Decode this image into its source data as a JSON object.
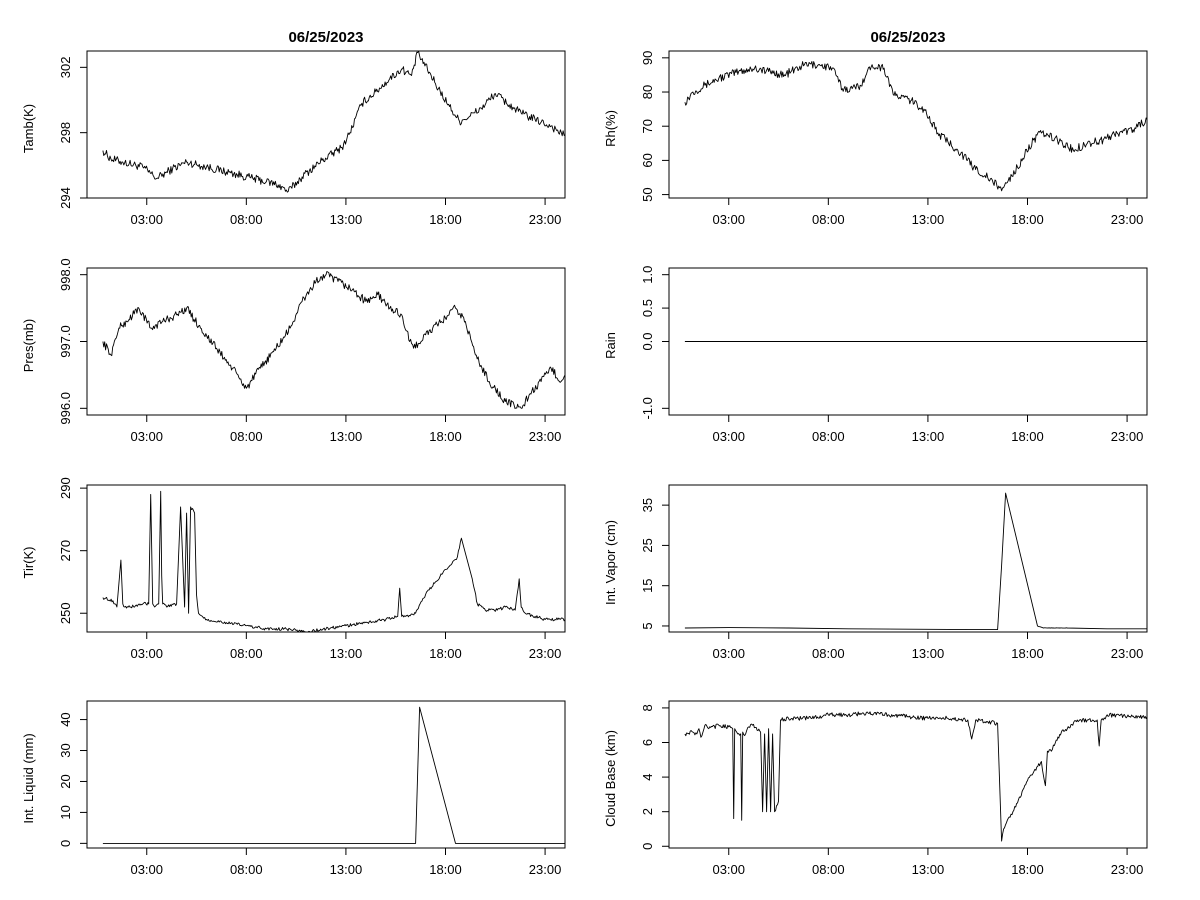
{
  "chart_data": [
    {
      "type": "line",
      "title": "06/25/2023",
      "ylabel": "Tamb(K)",
      "xlim": [
        0,
        24
      ],
      "ylim": [
        294,
        303
      ],
      "xticks": [
        3,
        8,
        13,
        18,
        23
      ],
      "xtick_labels": [
        "03:00",
        "08:00",
        "13:00",
        "18:00",
        "23:00"
      ],
      "yticks": [
        294,
        298,
        302
      ],
      "ytick_labels": [
        "294",
        "298",
        "302"
      ],
      "noise": 0.25,
      "series": [
        {
          "name": "Tamb",
          "x": [
            0.8,
            1.2,
            1.8,
            2.8,
            3.5,
            4.3,
            5,
            6,
            7,
            8,
            9,
            9.6,
            10.1,
            10.8,
            11.8,
            12.8,
            13.2,
            13.8,
            14.5,
            15.2,
            15.8,
            16.3,
            16.6,
            16.7,
            17.5,
            18.2,
            18.7,
            19.2,
            19.8,
            20.5,
            21.2,
            21.8,
            22.5,
            23.3,
            24
          ],
          "y": [
            296.9,
            296.4,
            296.2,
            295.9,
            295.2,
            295.8,
            296.2,
            295.9,
            295.6,
            295.3,
            295.0,
            294.8,
            294.4,
            295.3,
            296.3,
            297.1,
            298.0,
            299.8,
            300.5,
            301.3,
            301.9,
            301.5,
            302.9,
            302.7,
            301.0,
            299.6,
            298.7,
            299.0,
            299.5,
            300.4,
            299.7,
            299.2,
            298.8,
            298.4,
            297.8
          ]
        }
      ]
    },
    {
      "type": "line",
      "title": "06/25/2023",
      "ylabel": "Rh(%)",
      "xlim": [
        0,
        24
      ],
      "ylim": [
        49,
        92
      ],
      "xticks": [
        3,
        8,
        13,
        18,
        23
      ],
      "xtick_labels": [
        "03:00",
        "08:00",
        "13:00",
        "18:00",
        "23:00"
      ],
      "yticks": [
        50,
        60,
        70,
        80,
        90
      ],
      "ytick_labels": [
        "50",
        "60",
        "70",
        "80",
        "90"
      ],
      "noise": 1.2,
      "series": [
        {
          "name": "Rh",
          "x": [
            0.8,
            1.2,
            1.8,
            2.5,
            3.5,
            4.3,
            5,
            5.8,
            6.8,
            7.5,
            8.2,
            8.7,
            9.2,
            9.6,
            10.2,
            10.8,
            11.3,
            12,
            12.8,
            13.5,
            14.5,
            15.3,
            16,
            16.6,
            16.8,
            17.5,
            18.3,
            18.7,
            19.5,
            20.3,
            21,
            21.8,
            22.5,
            23.3,
            24
          ],
          "y": [
            77,
            80,
            82,
            84,
            86,
            87,
            86,
            85,
            88,
            88,
            87,
            81,
            81,
            82,
            88,
            87,
            79,
            78,
            75,
            68,
            63,
            58,
            55,
            52,
            52,
            58,
            66,
            68,
            66,
            63,
            65,
            66,
            68,
            69,
            72
          ]
        }
      ]
    },
    {
      "type": "line",
      "title": "",
      "ylabel": "Pres(mb)",
      "xlim": [
        0,
        24
      ],
      "ylim": [
        995.9,
        998.1
      ],
      "xticks": [
        3,
        8,
        13,
        18,
        23
      ],
      "xtick_labels": [
        "03:00",
        "08:00",
        "13:00",
        "18:00",
        "23:00"
      ],
      "yticks": [
        996.0,
        997.0,
        998.0
      ],
      "ytick_labels": [
        "996.0",
        "997.0",
        "998.0"
      ],
      "noise": 0.06,
      "series": [
        {
          "name": "Pres",
          "x": [
            0.8,
            1.2,
            1.6,
            2,
            2.6,
            3.2,
            3.8,
            4.5,
            5,
            5.7,
            6.5,
            7.3,
            8,
            8.7,
            9.5,
            10.2,
            10.8,
            11.5,
            12,
            12.6,
            13.2,
            14,
            14.6,
            15.2,
            15.8,
            16.2,
            16.4,
            17,
            17.8,
            18.5,
            19,
            19.5,
            20.2,
            21,
            21.8,
            22.2,
            22.8,
            23.3,
            23.8,
            24
          ],
          "y": [
            997.0,
            996.8,
            997.2,
            997.3,
            997.5,
            997.2,
            997.3,
            997.4,
            997.5,
            997.2,
            996.9,
            996.6,
            996.3,
            996.6,
            996.9,
            997.2,
            997.6,
            997.9,
            998.0,
            997.9,
            997.8,
            997.6,
            997.7,
            997.5,
            997.4,
            997.0,
            996.9,
            997.1,
            997.3,
            997.5,
            997.3,
            996.8,
            996.4,
            996.1,
            996.0,
            996.2,
            996.4,
            996.6,
            996.4,
            996.5
          ]
        }
      ]
    },
    {
      "type": "line",
      "title": "",
      "ylabel": "Rain",
      "xlim": [
        0,
        24
      ],
      "ylim": [
        -1.1,
        1.1
      ],
      "xticks": [
        3,
        8,
        13,
        18,
        23
      ],
      "xtick_labels": [
        "03:00",
        "08:00",
        "13:00",
        "18:00",
        "23:00"
      ],
      "yticks": [
        -1.0,
        0.0,
        0.5,
        1.0
      ],
      "ytick_labels": [
        "-1.0",
        "0.0",
        "0.5",
        "1.0"
      ],
      "noise": 0,
      "series": [
        {
          "name": "Rain",
          "x": [
            0.8,
            24
          ],
          "y": [
            0.0,
            0.0
          ]
        }
      ]
    },
    {
      "type": "line",
      "title": "",
      "ylabel": "Tir(K)",
      "xlim": [
        0,
        24
      ],
      "ylim": [
        244,
        291
      ],
      "xticks": [
        3,
        8,
        13,
        18,
        23
      ],
      "xtick_labels": [
        "03:00",
        "08:00",
        "13:00",
        "18:00",
        "23:00"
      ],
      "yticks": [
        250,
        270,
        290
      ],
      "ytick_labels": [
        "250",
        "270",
        "290"
      ],
      "noise": 0.5,
      "series": [
        {
          "name": "Tir",
          "x": [
            0.8,
            1.3,
            1.5,
            1.7,
            1.8,
            1.9,
            2.2,
            2.8,
            3.1,
            3.2,
            3.3,
            3.4,
            3.6,
            3.7,
            3.75,
            3.8,
            4.0,
            4.5,
            4.7,
            4.9,
            5.0,
            5.1,
            5.2,
            5.4,
            5.5,
            5.6,
            6,
            7,
            8,
            9,
            10,
            11,
            12,
            13,
            14,
            15,
            15.6,
            15.7,
            15.8,
            16,
            16.5,
            17,
            18,
            18.6,
            18.8,
            19.3,
            19.6,
            20,
            20.6,
            21,
            21.5,
            21.7,
            21.8,
            22,
            22.5,
            23,
            23.5,
            24
          ],
          "y": [
            255,
            254,
            252,
            267,
            253,
            252,
            252,
            253,
            253,
            288,
            253,
            252,
            253,
            289,
            262,
            253,
            252,
            253,
            284,
            252,
            282,
            250,
            284,
            282,
            256,
            250,
            248,
            247,
            246,
            245,
            245,
            244,
            245,
            246,
            247,
            248,
            249,
            258,
            249,
            249,
            250,
            256,
            264,
            268,
            274,
            262,
            253,
            251,
            251,
            252,
            251,
            261,
            252,
            250,
            249,
            248,
            248,
            248
          ]
        }
      ]
    },
    {
      "type": "line",
      "title": "",
      "ylabel": "Int. Vapor (cm)",
      "xlim": [
        0,
        24
      ],
      "ylim": [
        3.5,
        40
      ],
      "xticks": [
        3,
        8,
        13,
        18,
        23
      ],
      "xtick_labels": [
        "03:00",
        "08:00",
        "13:00",
        "18:00",
        "23:00"
      ],
      "yticks": [
        5,
        15,
        25,
        35
      ],
      "ytick_labels": [
        "5",
        "15",
        "25",
        "35"
      ],
      "noise": 0.05,
      "series": [
        {
          "name": "Int. Vapor",
          "x": [
            0.8,
            3,
            6,
            9,
            12,
            15,
            16.5,
            16.7,
            16.9,
            18.5,
            18.8,
            20,
            22,
            24
          ],
          "y": [
            4.5,
            4.6,
            4.5,
            4.3,
            4.2,
            4.1,
            4.1,
            20,
            38,
            5.0,
            4.5,
            4.5,
            4.3,
            4.3
          ]
        }
      ]
    },
    {
      "type": "line",
      "title": "",
      "ylabel": "Int. Liquid (mm)",
      "xlim": [
        0,
        24
      ],
      "ylim": [
        -1.5,
        46
      ],
      "xticks": [
        3,
        8,
        13,
        18,
        23
      ],
      "xtick_labels": [
        "03:00",
        "08:00",
        "13:00",
        "18:00",
        "23:00"
      ],
      "yticks": [
        0,
        10,
        20,
        30,
        40
      ],
      "ytick_labels": [
        "0",
        "10",
        "20",
        "30",
        "40"
      ],
      "noise": 0,
      "series": [
        {
          "name": "Int. Liquid",
          "x": [
            0.8,
            16.3,
            16.5,
            16.7,
            18.5,
            24
          ],
          "y": [
            0,
            0,
            0,
            44,
            0,
            0
          ]
        }
      ]
    },
    {
      "type": "line",
      "title": "",
      "ylabel": "Cloud Base (km)",
      "xlim": [
        0,
        24
      ],
      "ylim": [
        -0.1,
        8.4
      ],
      "xticks": [
        3,
        8,
        13,
        18,
        23
      ],
      "xtick_labels": [
        "03:00",
        "08:00",
        "13:00",
        "18:00",
        "23:00"
      ],
      "yticks": [
        0,
        2,
        4,
        6,
        8
      ],
      "ytick_labels": [
        "0",
        "2",
        "4",
        "6",
        "8"
      ],
      "noise": 0.12,
      "series": [
        {
          "name": "Cloud Base",
          "x": [
            0.8,
            1.2,
            1.4,
            1.5,
            1.6,
            1.8,
            2,
            2.5,
            3,
            3.2,
            3.25,
            3.3,
            3.4,
            3.6,
            3.65,
            3.7,
            3.8,
            4.0,
            4.2,
            4.6,
            4.7,
            4.8,
            4.9,
            5.0,
            5.1,
            5.2,
            5.3,
            5.5,
            5.6,
            6,
            7,
            8,
            9,
            10,
            11,
            12,
            13,
            14,
            15,
            15.2,
            15.4,
            15.6,
            16,
            16.5,
            16.7,
            16.8,
            17.5,
            18,
            18.7,
            18.9,
            19,
            19.2,
            19.4,
            19.7,
            20,
            20.5,
            21,
            21.5,
            21.6,
            21.7,
            21.8,
            22,
            23,
            24
          ],
          "y": [
            6.5,
            6.6,
            6.5,
            6.8,
            6.3,
            7.0,
            6.8,
            7.0,
            6.9,
            6.8,
            1.6,
            6.8,
            6.6,
            6.5,
            1.5,
            6.6,
            6.4,
            6.9,
            7.0,
            6.6,
            2.0,
            6.5,
            2.0,
            6.8,
            2.0,
            6.5,
            2.0,
            2.6,
            7.3,
            7.4,
            7.4,
            7.6,
            7.6,
            7.7,
            7.6,
            7.5,
            7.4,
            7.4,
            7.3,
            6.2,
            7.3,
            7.3,
            7.2,
            7.1,
            0.3,
            1.0,
            2.5,
            3.8,
            4.9,
            3.5,
            5.5,
            5.5,
            6.0,
            6.6,
            6.8,
            7.3,
            7.3,
            7.3,
            5.8,
            7.3,
            7.3,
            7.6,
            7.5,
            7.5
          ]
        }
      ]
    }
  ]
}
